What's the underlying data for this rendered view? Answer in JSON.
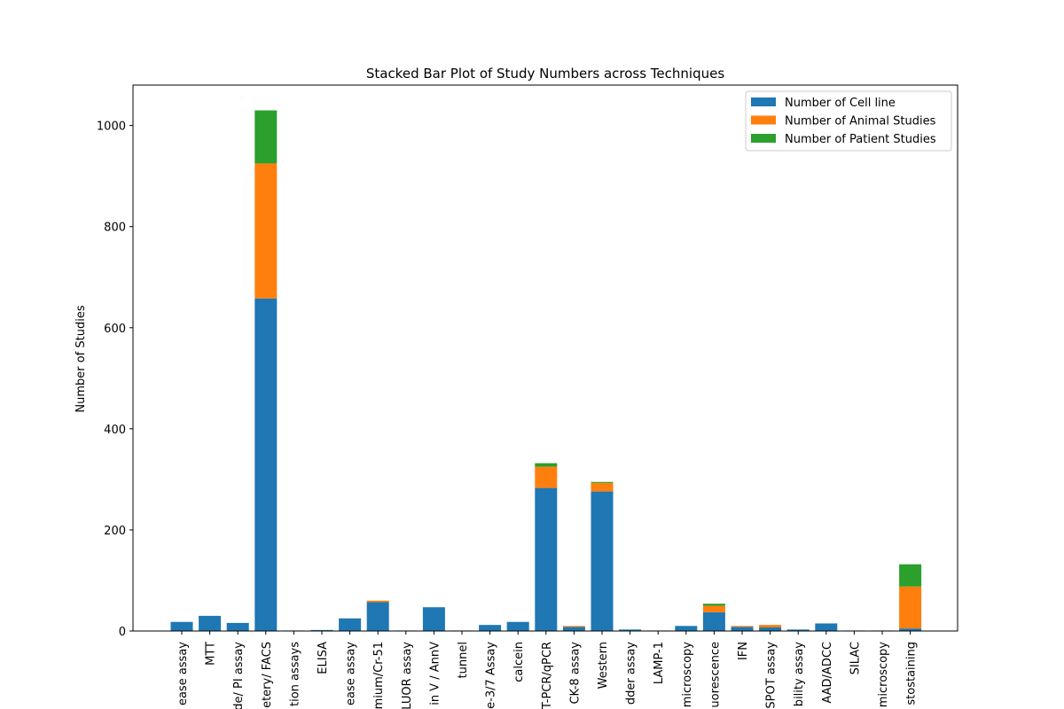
{
  "chart_data": {
    "type": "bar",
    "stacked": true,
    "title": "Stacked Bar Plot of Study Numbers across Techniques",
    "xlabel": "",
    "ylabel": "Number of Studies",
    "ylim": [
      0,
      1080
    ],
    "yticks": [
      0,
      200,
      400,
      600,
      800,
      1000
    ],
    "grid": false,
    "legend_position": "top-right",
    "categories": [
      "ease assay",
      "MTT",
      "de/ PI assay",
      "etery/ FACS",
      "tion assays",
      "ELISA",
      "ease assay",
      "mium/Cr-51",
      "LUOR assay",
      "in V / AnnV",
      "tunnel",
      "e-3/7 Assay",
      "calcein",
      "T-PCR/qPCR",
      "CK-8 assay",
      "Western",
      "dder assay",
      "LAMP-1",
      "microscopy",
      "uorescence",
      "IFN",
      "SPOT assay",
      "bility assay",
      "AAD/ADCC",
      "SILAC",
      "microscopy",
      "stostaining"
    ],
    "series": [
      {
        "name": "Number of Cell line",
        "color": "#1f77b4",
        "values": [
          18,
          30,
          16,
          658,
          1,
          2,
          25,
          57,
          1,
          47,
          1,
          12,
          18,
          283,
          8,
          276,
          3,
          1,
          10,
          37,
          8,
          7,
          3,
          15,
          1,
          1,
          5
        ]
      },
      {
        "name": "Number of Animal Studies",
        "color": "#ff7f0e",
        "values": [
          0,
          0,
          0,
          267,
          0,
          0,
          0,
          3,
          0,
          0,
          0,
          0,
          0,
          42,
          2,
          17,
          0,
          0,
          0,
          13,
          2,
          5,
          0,
          0,
          0,
          0,
          83
        ]
      },
      {
        "name": "Number of Patient Studies",
        "color": "#2ca02c",
        "values": [
          0,
          0,
          0,
          105,
          0,
          0,
          0,
          0,
          0,
          0,
          0,
          0,
          0,
          7,
          0,
          2,
          0,
          0,
          0,
          4,
          0,
          0,
          0,
          0,
          0,
          0,
          44
        ]
      }
    ]
  }
}
